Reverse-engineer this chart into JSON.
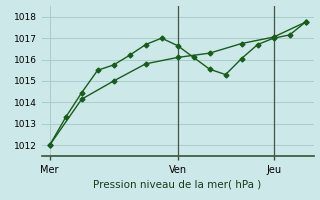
{
  "background_color": "#cce8e8",
  "grid_color": "#aacccc",
  "line_color": "#1a5c1a",
  "marker_color": "#1a5c1a",
  "xlabel": "Pression niveau de la mer( hPa )",
  "ylim": [
    1011.5,
    1018.5
  ],
  "yticks": [
    1012,
    1013,
    1014,
    1015,
    1016,
    1017,
    1018
  ],
  "xtick_positions": [
    0,
    8,
    14
  ],
  "xtick_labels": [
    "Mer",
    "Ven",
    "Jeu"
  ],
  "vlines_x": [
    8,
    14
  ],
  "series1_x": [
    0,
    1,
    2,
    3,
    4,
    5,
    6,
    7,
    8,
    9,
    10,
    11,
    12,
    13,
    14,
    15,
    16
  ],
  "series1_y": [
    1012.0,
    1013.3,
    1014.45,
    1015.5,
    1015.75,
    1016.2,
    1016.7,
    1017.0,
    1016.65,
    1016.1,
    1015.55,
    1015.3,
    1016.05,
    1016.7,
    1017.0,
    1017.15,
    1017.75
  ],
  "series2_x": [
    0,
    2,
    4,
    6,
    8,
    10,
    12,
    14,
    16
  ],
  "series2_y": [
    1012.0,
    1014.15,
    1015.0,
    1015.8,
    1016.1,
    1016.3,
    1016.75,
    1017.05,
    1017.75
  ]
}
